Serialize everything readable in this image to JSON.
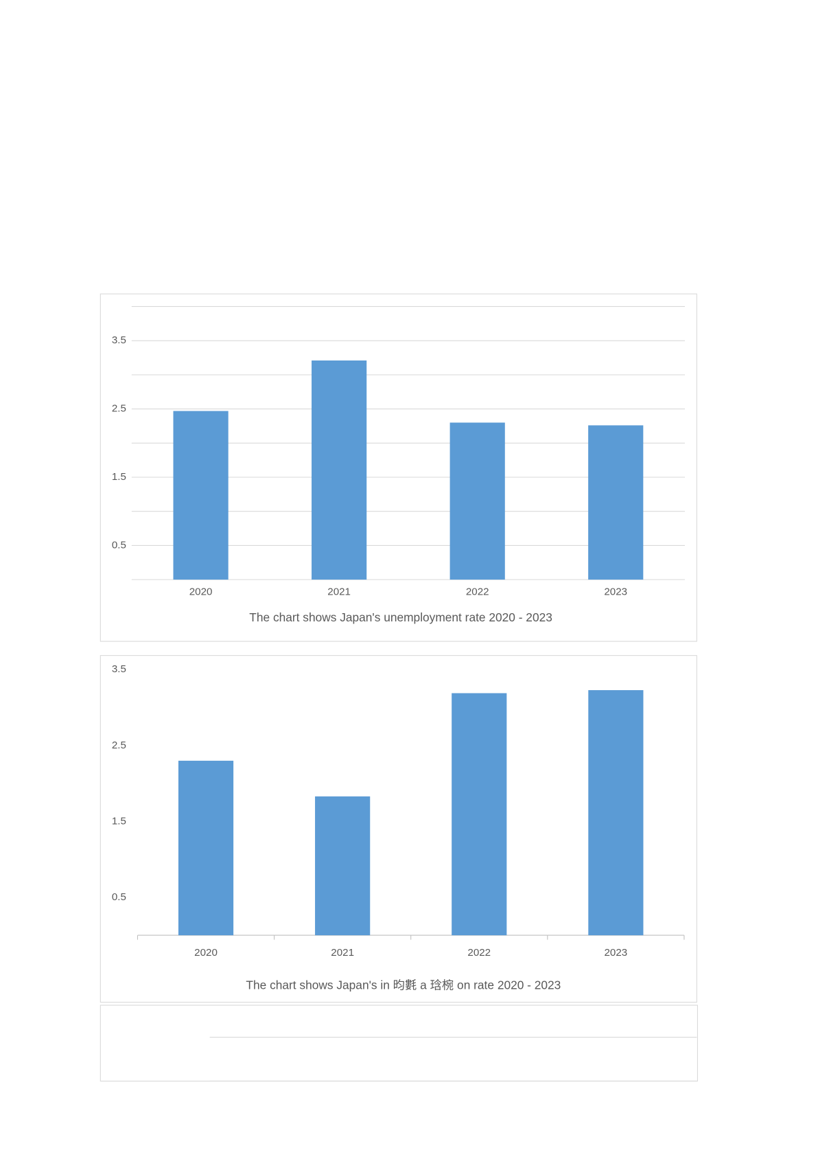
{
  "chart_data": [
    {
      "type": "bar",
      "title": "The chart shows Japan's unemployment rate 2020 - 2023",
      "categories": [
        "2020",
        "2021",
        "2022",
        "2023"
      ],
      "values": [
        2.47,
        3.21,
        2.3,
        2.26
      ],
      "color": "#5b9bd5",
      "ylim": [
        0,
        4
      ],
      "yticks": [
        0.5,
        1.5,
        2.5,
        3.5
      ],
      "grid": true,
      "ygrid": [
        0,
        0.5,
        1,
        1.5,
        2,
        2.5,
        3,
        3.5,
        4
      ]
    },
    {
      "type": "bar",
      "title": "The chart shows Japan's in 昀氀 a 琀椀 on rate 2020 - 2023",
      "categories": [
        "2020",
        "2021",
        "2022",
        "2023"
      ],
      "values": [
        2.3,
        1.83,
        3.19,
        3.23
      ],
      "color": "#5b9bd5",
      "ylim": [
        0,
        3.5
      ],
      "yticks": [
        0.5,
        1.5,
        2.5,
        3.5
      ],
      "grid": false
    }
  ]
}
